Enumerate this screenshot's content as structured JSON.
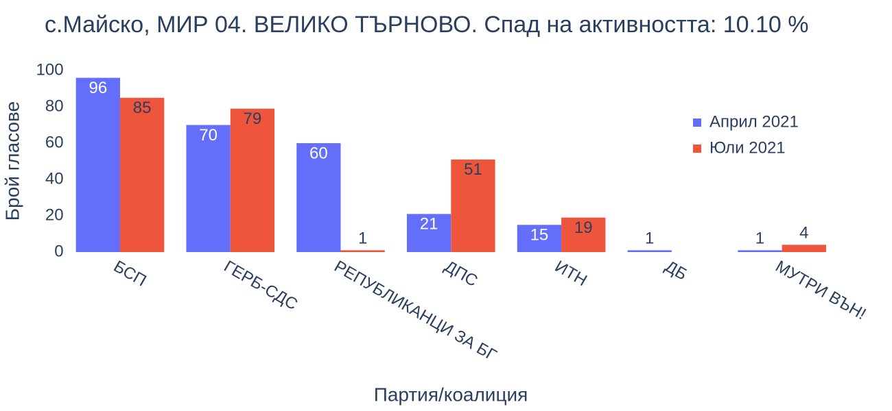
{
  "chart_data": {
    "type": "bar",
    "title": "с.Майско, МИР 04. ВЕЛИКО ТЪРНОВО. Спад на активността: 10.10 %",
    "x_label": "Партия/коалиция",
    "y_label": "Брой гласове",
    "categories": [
      "БСП",
      "ГЕРБ-СДС",
      "РЕПУБЛИКАНЦИ ЗА БГ",
      "ДПС",
      "ИТН",
      "ДБ",
      "МУТРИ ВЪН!"
    ],
    "series": [
      {
        "name": "Април 2021",
        "color": "#636efa",
        "values": [
          96,
          70,
          60,
          21,
          15,
          1,
          1
        ]
      },
      {
        "name": "Юли 2021",
        "color": "#ef553b",
        "values": [
          85,
          79,
          1,
          51,
          19,
          null,
          4
        ]
      }
    ],
    "ylim": [
      0,
      100
    ],
    "yticks": [
      0,
      20,
      40,
      60,
      80,
      100
    ],
    "grid": false
  }
}
